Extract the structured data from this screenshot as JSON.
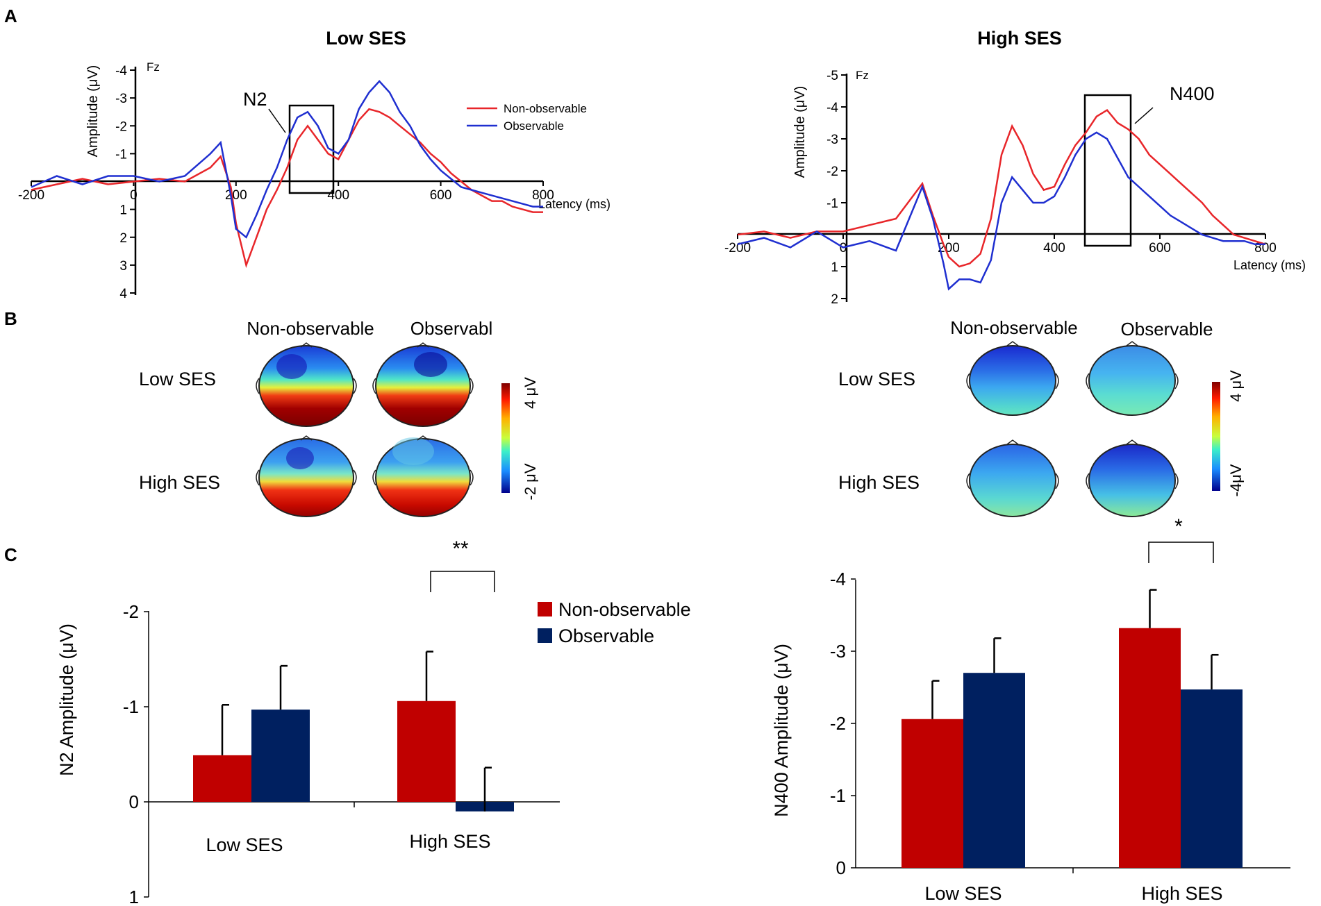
{
  "panel_labels": [
    "A",
    "B",
    "C"
  ],
  "colors": {
    "non_observable": "#e8262a",
    "observable": "#1f2fd0",
    "bar_non_observable": "#c00000",
    "bar_observable": "#002060"
  },
  "erp_panels": [
    {
      "title": "Low  SES",
      "electrode": "Fz",
      "ylabel": "Amplitude (μV)",
      "xlabel": "Latency (ms)",
      "x_ticks": [
        "-200",
        "0",
        "200",
        "400",
        "600",
        "800"
      ],
      "y_ticks": [
        "-4",
        "-3",
        "-2",
        "-1",
        "1",
        "2",
        "3",
        "4"
      ],
      "component_label": "N2",
      "legend": [
        "Non-observable",
        "Observable"
      ]
    },
    {
      "title": "High SES",
      "electrode": "Fz",
      "ylabel": "Amplitude (μV)",
      "xlabel": "Latency (ms)",
      "x_ticks": [
        "-200",
        "0",
        "200",
        "400",
        "600",
        "800"
      ],
      "y_ticks": [
        "-5",
        "-4",
        "-3",
        "-2",
        "-1",
        "1",
        "2"
      ],
      "component_label": "N400"
    }
  ],
  "topo_panels": [
    {
      "col_labels": [
        "Non-observable",
        "Observabl"
      ],
      "row_labels": [
        "Low  SES",
        "High SES"
      ],
      "scale_max": "4 μV",
      "scale_min": "-2 μV"
    },
    {
      "col_labels": [
        "Non-observable",
        "Observable"
      ],
      "row_labels": [
        "Low  SES",
        "High SES"
      ],
      "scale_max": "4 μV",
      "scale_min": "-4μV"
    }
  ],
  "chart_data": [
    {
      "type": "line",
      "title": "Low  SES",
      "xlabel": "Latency (ms)",
      "ylabel": "Amplitude (μV)",
      "xlim": [
        -200,
        800
      ],
      "ylim": [
        4,
        -4
      ],
      "series": [
        {
          "name": "Non-observable",
          "x": [
            -200,
            -150,
            -100,
            -50,
            0,
            50,
            100,
            150,
            170,
            190,
            200,
            220,
            240,
            260,
            280,
            300,
            320,
            340,
            360,
            380,
            400,
            420,
            440,
            460,
            480,
            500,
            520,
            540,
            560,
            580,
            600,
            620,
            640,
            660,
            680,
            700,
            720,
            740,
            760,
            780,
            800
          ],
          "y": [
            0.3,
            0.1,
            -0.1,
            0.1,
            0,
            -0.1,
            0,
            -0.5,
            -0.9,
            0.2,
            1.5,
            3.0,
            2.0,
            1.0,
            0.3,
            -0.5,
            -1.5,
            -2.0,
            -1.5,
            -1.0,
            -0.8,
            -1.5,
            -2.2,
            -2.6,
            -2.5,
            -2.3,
            -2.0,
            -1.7,
            -1.4,
            -1.0,
            -0.7,
            -0.3,
            0,
            0.3,
            0.5,
            0.7,
            0.7,
            0.9,
            1.0,
            1.1,
            1.1
          ]
        },
        {
          "name": "Observable",
          "x": [
            -200,
            -150,
            -100,
            -50,
            0,
            50,
            100,
            150,
            170,
            190,
            200,
            220,
            240,
            260,
            280,
            300,
            320,
            340,
            360,
            380,
            400,
            420,
            440,
            460,
            480,
            500,
            520,
            540,
            560,
            580,
            600,
            620,
            640,
            660,
            680,
            700,
            720,
            740,
            760,
            780,
            800
          ],
          "y": [
            0.2,
            -0.2,
            0.1,
            -0.2,
            -0.2,
            0,
            -0.2,
            -1.0,
            -1.4,
            0.5,
            1.7,
            2.0,
            1.2,
            0.3,
            -0.5,
            -1.5,
            -2.3,
            -2.5,
            -2.0,
            -1.2,
            -1.0,
            -1.5,
            -2.6,
            -3.2,
            -3.6,
            -3.2,
            -2.5,
            -2.0,
            -1.3,
            -0.8,
            -0.4,
            -0.1,
            0.2,
            0.3,
            0.4,
            0.5,
            0.6,
            0.7,
            0.8,
            0.9,
            0.9
          ]
        }
      ],
      "annotations": [
        "N2"
      ]
    },
    {
      "type": "line",
      "title": "High SES",
      "xlabel": "Latency (ms)",
      "ylabel": "Amplitude (μV)",
      "xlim": [
        -200,
        800
      ],
      "ylim": [
        2,
        -5
      ],
      "series": [
        {
          "name": "Non-observable",
          "x": [
            -200,
            -150,
            -100,
            -50,
            0,
            50,
            100,
            150,
            170,
            190,
            200,
            220,
            240,
            260,
            280,
            300,
            320,
            340,
            360,
            380,
            400,
            420,
            440,
            460,
            480,
            500,
            520,
            540,
            560,
            580,
            600,
            620,
            640,
            660,
            680,
            700,
            720,
            740,
            760,
            780,
            800
          ],
          "y": [
            0,
            -0.1,
            0.1,
            -0.1,
            -0.1,
            -0.3,
            -0.5,
            -1.6,
            -0.6,
            0.3,
            0.7,
            1.0,
            0.9,
            0.6,
            -0.5,
            -2.5,
            -3.4,
            -2.8,
            -1.9,
            -1.4,
            -1.5,
            -2.2,
            -2.8,
            -3.2,
            -3.7,
            -3.9,
            -3.5,
            -3.3,
            -3.0,
            -2.5,
            -2.2,
            -1.9,
            -1.6,
            -1.3,
            -1.0,
            -0.6,
            -0.3,
            0,
            0.1,
            0.2,
            0.3
          ]
        },
        {
          "name": "Observable",
          "x": [
            -200,
            -150,
            -100,
            -50,
            0,
            50,
            100,
            150,
            170,
            190,
            200,
            220,
            240,
            260,
            280,
            300,
            320,
            340,
            360,
            380,
            400,
            420,
            440,
            460,
            480,
            500,
            520,
            540,
            560,
            580,
            600,
            620,
            640,
            660,
            680,
            700,
            720,
            740,
            760,
            780,
            800
          ],
          "y": [
            0.3,
            0.1,
            0.4,
            -0.1,
            0.4,
            0.2,
            0.5,
            -1.5,
            -0.5,
            0.9,
            1.7,
            1.4,
            1.4,
            1.5,
            0.8,
            -1.0,
            -1.8,
            -1.4,
            -1.0,
            -1.0,
            -1.2,
            -1.8,
            -2.5,
            -3.0,
            -3.2,
            -3.0,
            -2.4,
            -1.8,
            -1.5,
            -1.2,
            -0.9,
            -0.6,
            -0.4,
            -0.2,
            0,
            0.1,
            0.2,
            0.2,
            0.2,
            0.3,
            0.3
          ]
        }
      ],
      "annotations": [
        "N400"
      ]
    },
    {
      "type": "bar",
      "ylabel": "N2 Amplitude (μV)",
      "categories": [
        "Low SES",
        "High SES"
      ],
      "series": [
        {
          "name": "Non-observable",
          "values": [
            -0.49,
            -1.06
          ],
          "errors": [
            0.53,
            0.52
          ]
        },
        {
          "name": "Observable",
          "values": [
            -0.97,
            0.1
          ],
          "errors": [
            0.46,
            0.46
          ]
        }
      ],
      "ylim": [
        1,
        -2
      ],
      "y_ticks": [
        "-2",
        "-1",
        "0",
        "1"
      ],
      "significance": [
        {
          "category": "High SES",
          "label": "**"
        }
      ],
      "legend": [
        "Non-observable",
        "Observable"
      ]
    },
    {
      "type": "bar",
      "ylabel": "N400  Amplitude (μV)",
      "categories": [
        "Low SES",
        "High SES"
      ],
      "series": [
        {
          "name": "Non-observable",
          "values": [
            -2.06,
            -3.32
          ],
          "errors": [
            0.53,
            0.53
          ]
        },
        {
          "name": "Observable",
          "values": [
            -2.7,
            -2.47
          ],
          "errors": [
            0.48,
            0.48
          ]
        }
      ],
      "ylim": [
        0,
        -4
      ],
      "y_ticks": [
        "-4",
        "-3",
        "-2",
        "-1",
        "0"
      ],
      "significance": [
        {
          "category": "High SES",
          "label": "*"
        }
      ]
    }
  ]
}
